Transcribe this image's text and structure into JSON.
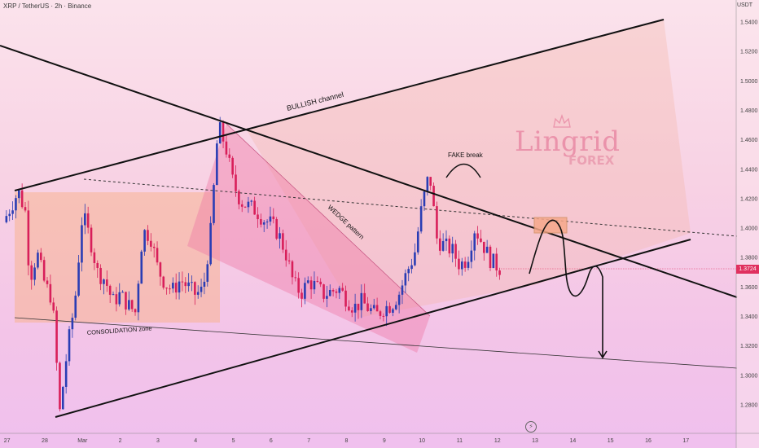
{
  "header": {
    "symbol": "XRP / TetherUS · 2h · Binance",
    "unit": "USDT"
  },
  "logo": {
    "name": "Lingrid",
    "sub": "FOREX"
  },
  "current_price": "1.3724",
  "chart_data": {
    "type": "candlestick",
    "title": "XRP / TetherUS · 2h · Binance",
    "y_axis": {
      "unit": "USDT",
      "ylim": [
        1.268,
        1.556
      ],
      "ticks": [
        "1.5400",
        "1.5200",
        "1.5000",
        "1.4800",
        "1.4600",
        "1.4400",
        "1.4200",
        "1.4000",
        "1.3800",
        "1.3600",
        "1.3400",
        "1.3200",
        "1.3000",
        "1.2800"
      ]
    },
    "x_axis": {
      "ticks": [
        "27",
        "28",
        "Mar",
        "2",
        "3",
        "4",
        "5",
        "6",
        "7",
        "8",
        "9",
        "10",
        "11",
        "12",
        "13",
        "14",
        "15",
        "16",
        "17"
      ],
      "xlim": [
        -0.1,
        18.9
      ]
    },
    "current_price": 1.3724,
    "annotations": [
      "BULLISH channel",
      "WEDGE pattern",
      "CONSOLIDATION zone",
      "FAKE break"
    ],
    "colors": {
      "up": "#2a3db4",
      "down": "#d81f5a",
      "line": "#111111",
      "zone": "#f6b88e",
      "wedge": "#f07aa6",
      "price": "#e0305f"
    },
    "candle_path": [
      [
        -0.1,
        1.404
      ],
      [
        0.3,
        1.425
      ],
      [
        0.5,
        1.41
      ],
      [
        0.6,
        1.365
      ],
      [
        0.8,
        1.383
      ],
      [
        1.0,
        1.362
      ],
      [
        1.2,
        1.352
      ],
      [
        1.4,
        1.275
      ],
      [
        1.6,
        1.318
      ],
      [
        1.8,
        1.35
      ],
      [
        2.0,
        1.41
      ],
      [
        2.2,
        1.393
      ],
      [
        2.4,
        1.37
      ],
      [
        2.6,
        1.365
      ],
      [
        2.8,
        1.35
      ],
      [
        3.0,
        1.355
      ],
      [
        3.2,
        1.348
      ],
      [
        3.4,
        1.343
      ],
      [
        3.6,
        1.398
      ],
      [
        3.8,
        1.395
      ],
      [
        4.0,
        1.372
      ],
      [
        4.2,
        1.362
      ],
      [
        4.4,
        1.358
      ],
      [
        4.6,
        1.365
      ],
      [
        4.8,
        1.36
      ],
      [
        5.0,
        1.355
      ],
      [
        5.2,
        1.358
      ],
      [
        5.4,
        1.398
      ],
      [
        5.6,
        1.47
      ],
      [
        5.8,
        1.455
      ],
      [
        6.0,
        1.43
      ],
      [
        6.2,
        1.418
      ],
      [
        6.4,
        1.415
      ],
      [
        6.6,
        1.412
      ],
      [
        6.8,
        1.406
      ],
      [
        7.0,
        1.403
      ],
      [
        7.2,
        1.396
      ],
      [
        7.4,
        1.382
      ],
      [
        7.6,
        1.362
      ],
      [
        7.8,
        1.356
      ],
      [
        8.0,
        1.364
      ],
      [
        8.2,
        1.36
      ],
      [
        8.4,
        1.355
      ],
      [
        8.6,
        1.357
      ],
      [
        8.8,
        1.359
      ],
      [
        9.0,
        1.352
      ],
      [
        9.2,
        1.346
      ],
      [
        9.4,
        1.35
      ],
      [
        9.6,
        1.345
      ],
      [
        9.8,
        1.341
      ],
      [
        10.0,
        1.346
      ],
      [
        10.2,
        1.348
      ],
      [
        10.4,
        1.356
      ],
      [
        10.6,
        1.37
      ],
      [
        10.8,
        1.382
      ],
      [
        11.0,
        1.415
      ],
      [
        11.2,
        1.438
      ],
      [
        11.4,
        1.392
      ],
      [
        11.6,
        1.388
      ],
      [
        11.8,
        1.385
      ],
      [
        12.0,
        1.375
      ],
      [
        12.2,
        1.379
      ],
      [
        12.4,
        1.4
      ],
      [
        12.6,
        1.39
      ],
      [
        12.8,
        1.379
      ],
      [
        13.0,
        1.374
      ],
      [
        13.1,
        1.372
      ]
    ]
  }
}
